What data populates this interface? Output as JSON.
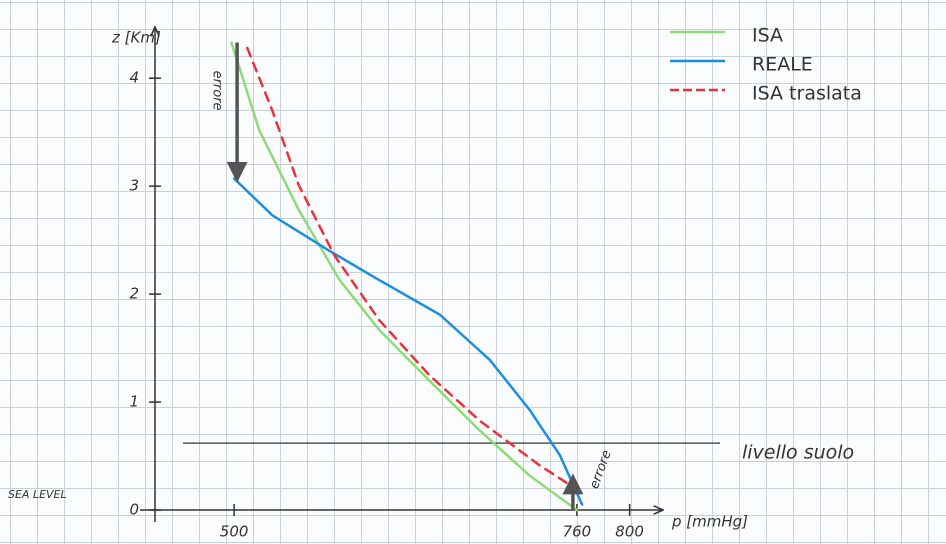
{
  "chart_data": {
    "type": "line",
    "y_label": "z [Km]",
    "x_label": "p [mmHg]",
    "xlim": [
      440,
      820
    ],
    "ylim": [
      0,
      4.4
    ],
    "xticks": [
      500,
      760,
      800
    ],
    "yticks": [
      0,
      1,
      2,
      3,
      4
    ],
    "sea_level_label": "SEA LEVEL",
    "series": [
      {
        "name": "ISA",
        "color": "#8cdb78",
        "dashed": false,
        "x": [
          498,
          519,
          549,
          580,
          610,
          648,
          686,
          724,
          760
        ],
        "values": [
          4.33,
          3.52,
          2.78,
          2.13,
          1.67,
          1.2,
          0.74,
          0.32,
          0
        ]
      },
      {
        "name": "REALE",
        "color": "#1a8fe0",
        "dashed": false,
        "x": [
          500,
          529,
          571,
          610,
          656,
          694,
          724,
          747,
          764
        ],
        "values": [
          3.07,
          2.73,
          2.41,
          2.13,
          1.81,
          1.39,
          0.93,
          0.51,
          0.05
        ]
      },
      {
        "name": "ISA traslata",
        "color": "#e8323a",
        "dashed": true,
        "x": [
          510,
          529,
          549,
          576,
          610,
          648,
          686,
          731,
          755
        ],
        "values": [
          4.28,
          3.7,
          3.01,
          2.36,
          1.76,
          1.25,
          0.83,
          0.42,
          0.23
        ]
      }
    ],
    "ground_level": {
      "text": "livello suolo",
      "y": 0.62
    },
    "errors": [
      {
        "text": "errore",
        "x": 500,
        "y": [
          4.33,
          3.07
        ]
      },
      {
        "text": "errore",
        "x": 760,
        "y": [
          0,
          0.3
        ]
      }
    ]
  }
}
